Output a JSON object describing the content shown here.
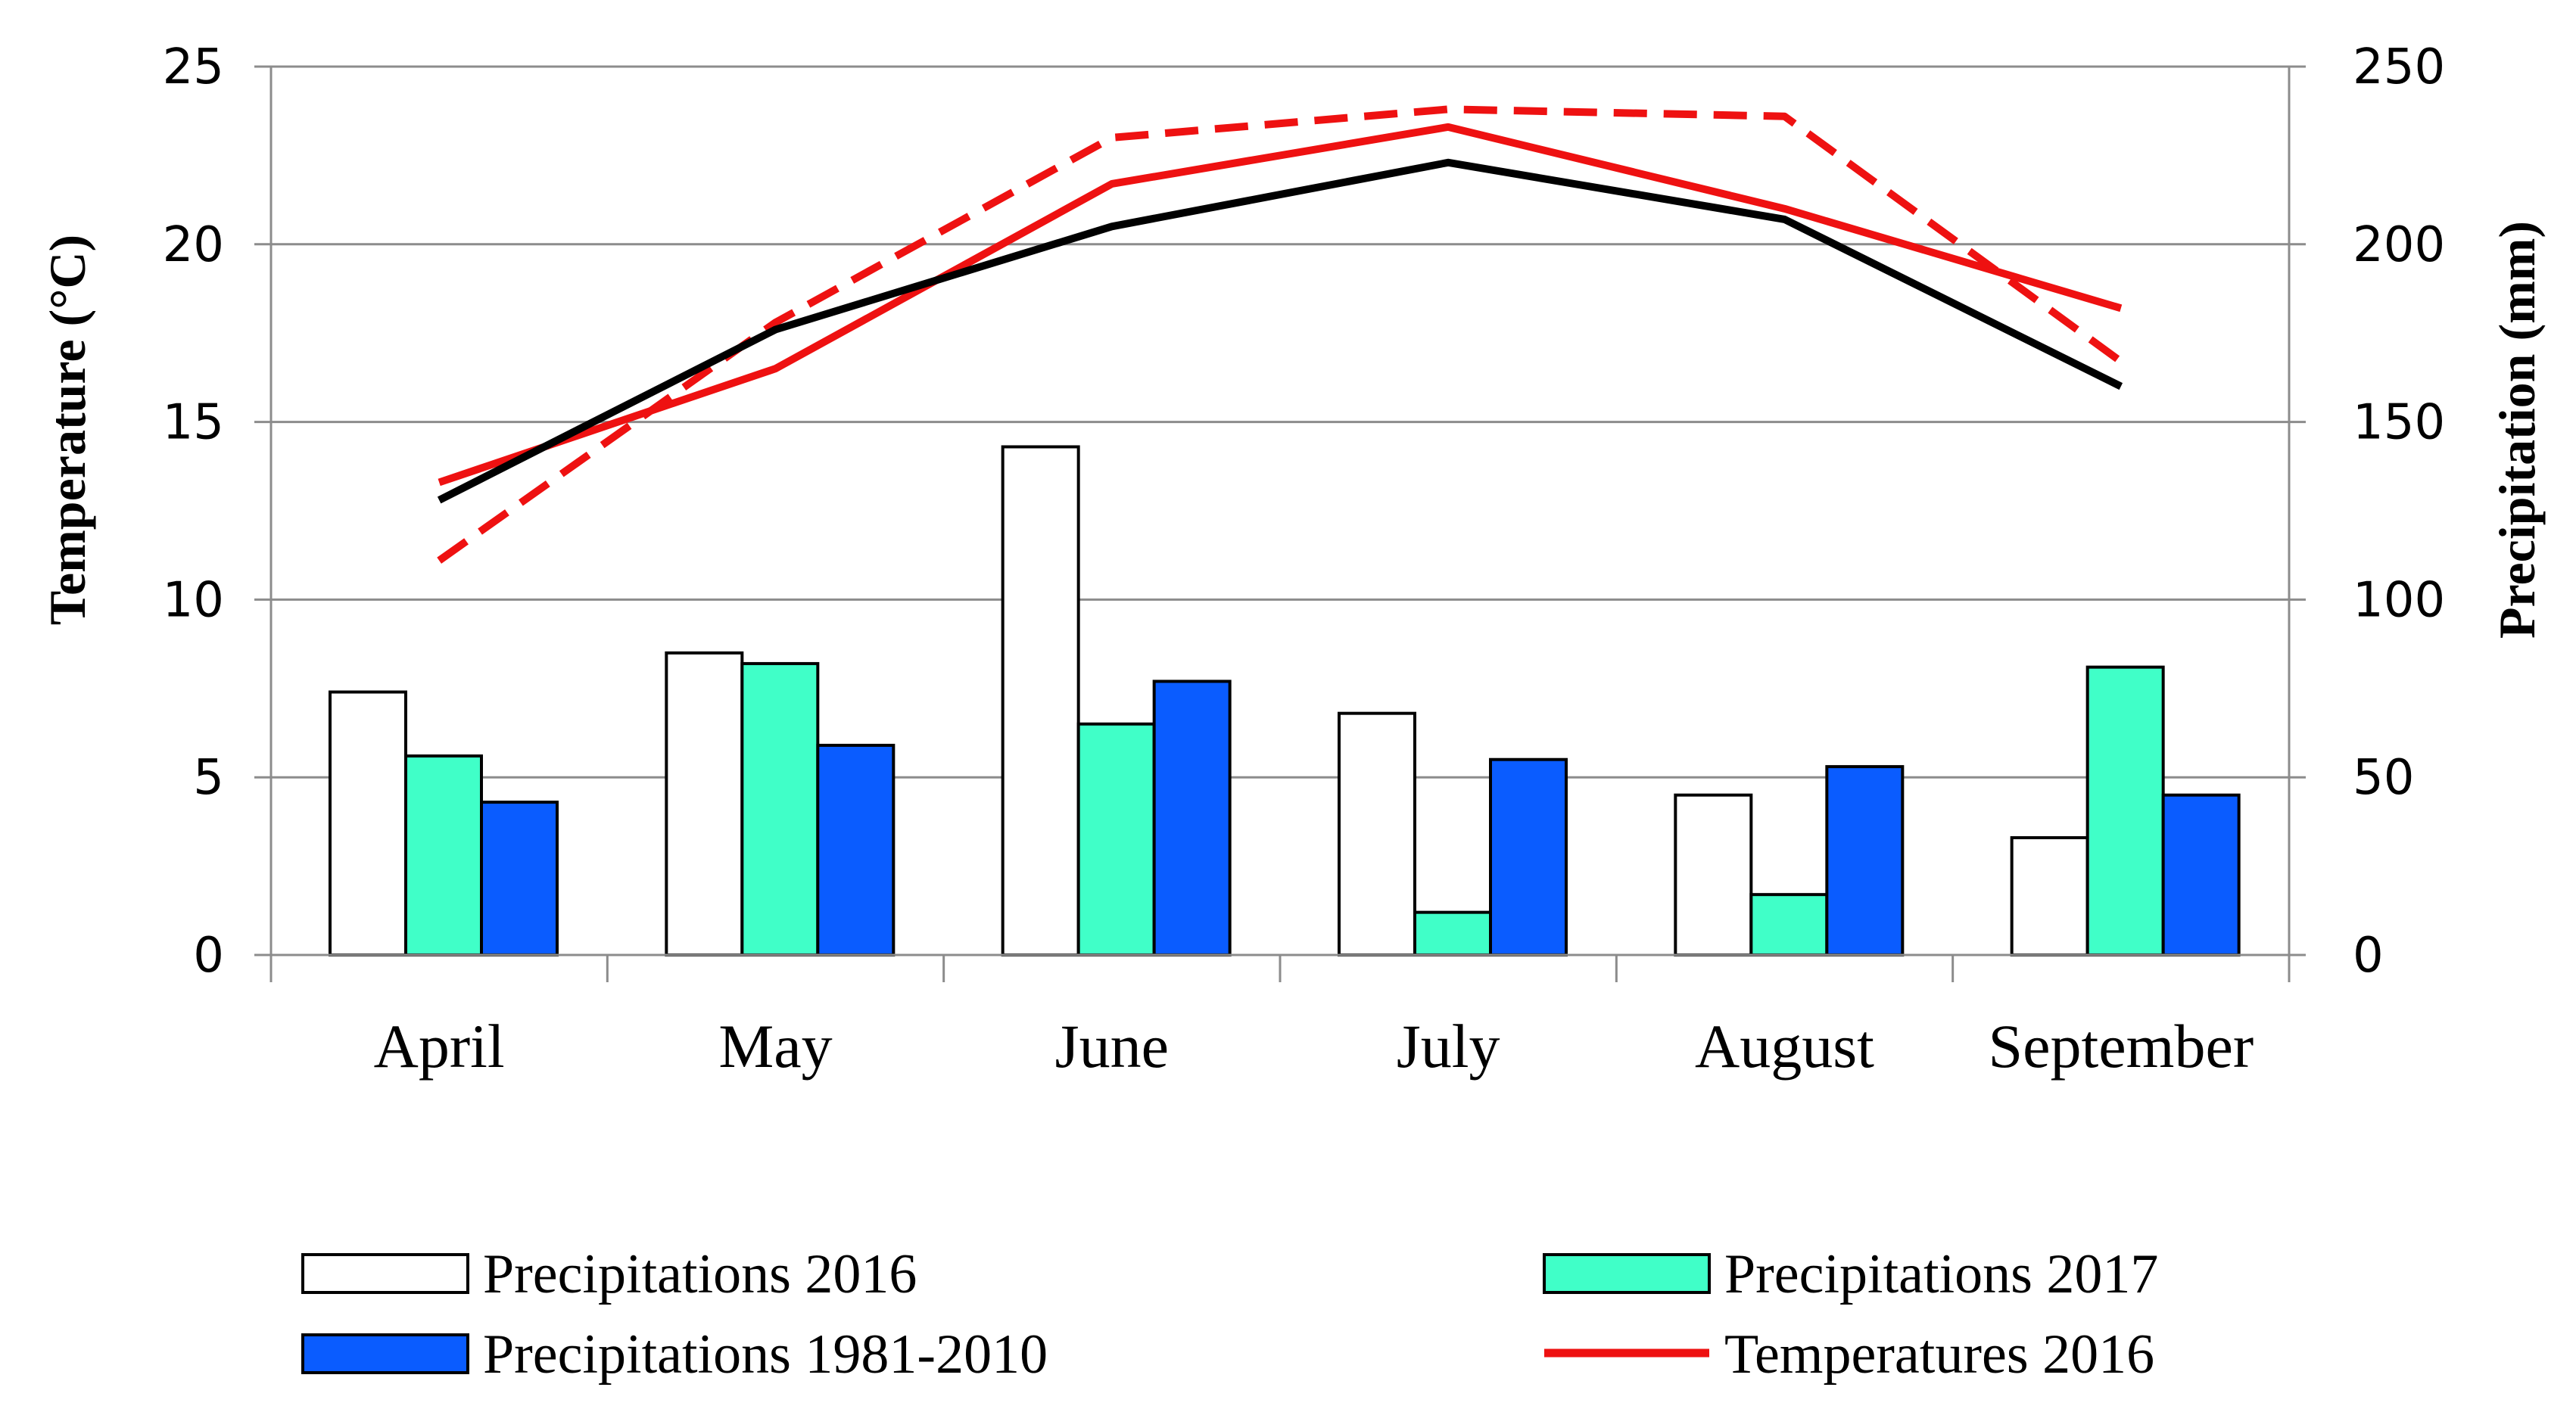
{
  "chart_data": {
    "type": "bar+line",
    "categories": [
      "April",
      "May",
      "June",
      "July",
      "August",
      "September"
    ],
    "y_left": {
      "label": "Temperature (°C)",
      "range": [
        0,
        25
      ],
      "ticks": [
        0,
        5,
        10,
        15,
        20,
        25
      ]
    },
    "y_right": {
      "label": "Precipitation (mm)",
      "range": [
        0,
        250
      ],
      "ticks": [
        0,
        50,
        100,
        150,
        200,
        250
      ]
    },
    "bar_series": [
      {
        "name": "Precipitations 2016",
        "color": "#ffffff",
        "axis": "right",
        "values": [
          74,
          85,
          143,
          68,
          45,
          33
        ]
      },
      {
        "name": "Precipitations 2017",
        "color": "#40ffc8",
        "axis": "right",
        "values": [
          56,
          82,
          65,
          12,
          17,
          81
        ]
      },
      {
        "name": "Precipitations 1981-2010",
        "color": "#0a5cff",
        "axis": "right",
        "values": [
          43,
          59,
          77,
          55,
          53,
          45
        ]
      }
    ],
    "line_series": [
      {
        "name": "Temperatures 2016",
        "color": "#ee1111",
        "style": "solid",
        "axis": "left",
        "values": [
          13.3,
          16.5,
          21.7,
          23.3,
          21.0,
          18.2
        ]
      },
      {
        "name": "",
        "color": "#ee1111",
        "style": "dashed",
        "axis": "left",
        "values": [
          11.1,
          17.8,
          23.0,
          23.8,
          23.6,
          16.7
        ]
      },
      {
        "name": "",
        "color": "#000000",
        "style": "solid",
        "axis": "left",
        "values": [
          12.8,
          17.6,
          20.5,
          22.3,
          20.7,
          16.0
        ]
      }
    ],
    "legend": [
      {
        "label": "Precipitations 2016",
        "kind": "bar",
        "color": "#ffffff"
      },
      {
        "label": "Precipitations 2017",
        "kind": "bar",
        "color": "#40ffc8"
      },
      {
        "label": "Precipitations 1981-2010",
        "kind": "bar",
        "color": "#0a5cff"
      },
      {
        "label": "Temperatures 2016",
        "kind": "line",
        "color": "#ee1111"
      }
    ],
    "legend_position": "bottom",
    "grid": true
  }
}
